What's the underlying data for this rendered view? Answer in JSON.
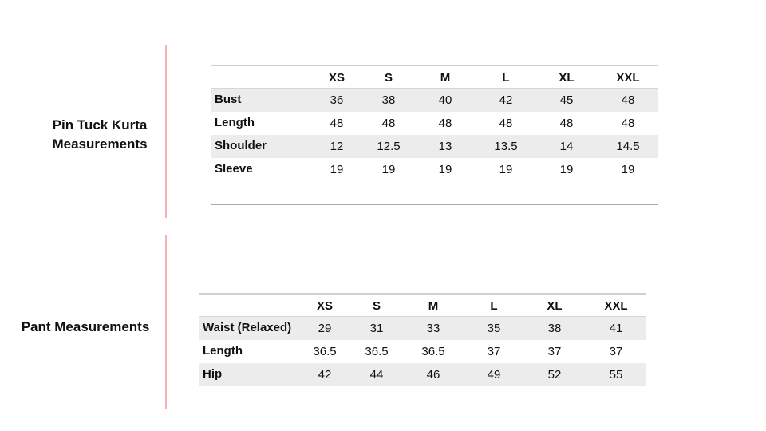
{
  "kurta": {
    "title_line1": "Pin Tuck Kurta",
    "title_line2": "Measurements",
    "sizes": [
      "XS",
      "S",
      "M",
      "L",
      "XL",
      "XXL"
    ],
    "rows": [
      {
        "label": "Bust",
        "values": [
          "36",
          "38",
          "40",
          "42",
          "45",
          "48"
        ]
      },
      {
        "label": "Length",
        "values": [
          "48",
          "48",
          "48",
          "48",
          "48",
          "48"
        ]
      },
      {
        "label": "Shoulder",
        "values": [
          "12",
          "12.5",
          "13",
          "13.5",
          "14",
          "14.5"
        ]
      },
      {
        "label": "Sleeve",
        "values": [
          "19",
          "19",
          "19",
          "19",
          "19",
          "19"
        ]
      }
    ]
  },
  "pant": {
    "title": "Pant Measurements",
    "sizes": [
      "XS",
      "S",
      "M",
      "L",
      "XL",
      "XXL"
    ],
    "rows": [
      {
        "label": "Waist (Relaxed)",
        "values": [
          "29",
          "31",
          "33",
          "35",
          "38",
          "41"
        ]
      },
      {
        "label": "Length",
        "values": [
          "36.5",
          "36.5",
          "36.5",
          "37",
          "37",
          "37"
        ]
      },
      {
        "label": "Hip",
        "values": [
          "42",
          "44",
          "46",
          "49",
          "52",
          "55"
        ]
      }
    ]
  },
  "colors": {
    "divider": "#f4b4b4",
    "row_shade": "#ececec"
  }
}
